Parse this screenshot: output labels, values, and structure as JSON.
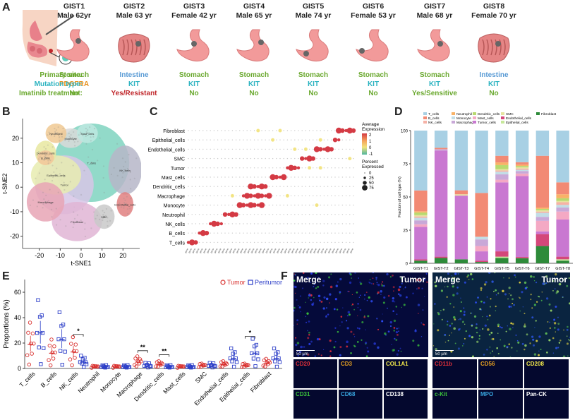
{
  "panel_labels": {
    "a": "A",
    "b": "B",
    "c": "C",
    "d": "D",
    "e": "E",
    "f": "F"
  },
  "row_labels": {
    "site": "Primary site:",
    "mutation": "Mutation type:",
    "imatinib": "Imatinib treatment:"
  },
  "gists": [
    {
      "id": "GIST1",
      "demo": "Male 62yr",
      "organ": "stomach",
      "site": "Stomach",
      "mutation": "PDGFRA",
      "imatinib": "No",
      "site_color": "green",
      "mut_color": "orange",
      "ima_color": "green"
    },
    {
      "id": "GIST2",
      "demo": "Male 63 yr",
      "organ": "intestine",
      "site": "Intestine",
      "mutation": "KIT",
      "imatinib": "Yes/Resistant",
      "site_color": "blue",
      "mut_color": "teal",
      "ima_color": "red"
    },
    {
      "id": "GIST3",
      "demo": "Female 42 yr",
      "organ": "stomach",
      "site": "Stomach",
      "mutation": "KIT",
      "imatinib": "No",
      "site_color": "green",
      "mut_color": "teal",
      "ima_color": "green"
    },
    {
      "id": "GIST4",
      "demo": "Male 65 yr",
      "organ": "stomach",
      "site": "Stomach",
      "mutation": "KIT",
      "imatinib": "No",
      "site_color": "green",
      "mut_color": "teal",
      "ima_color": "green"
    },
    {
      "id": "GIST5",
      "demo": "Male 74 yr",
      "organ": "stomach",
      "site": "Stomach",
      "mutation": "KIT",
      "imatinib": "No",
      "site_color": "green",
      "mut_color": "teal",
      "ima_color": "green"
    },
    {
      "id": "GIST6",
      "demo": "Female 53 yr",
      "organ": "stomach",
      "site": "Stomach",
      "mutation": "KIT",
      "imatinib": "No",
      "site_color": "green",
      "mut_color": "teal",
      "ima_color": "green"
    },
    {
      "id": "GIST7",
      "demo": "Male 68 yr",
      "organ": "stomach",
      "site": "Stomach",
      "mutation": "KIT",
      "imatinib": "Yes/Sensitive",
      "site_color": "green",
      "mut_color": "teal",
      "ima_color": "green"
    },
    {
      "id": "GIST8",
      "demo": "Female 70 yr",
      "organ": "intestine",
      "site": "Intestine",
      "mutation": "KIT",
      "imatinib": "No",
      "site_color": "blue",
      "mut_color": "teal",
      "ima_color": "green"
    }
  ],
  "chart_data": [
    {
      "panel": "B",
      "type": "scatter",
      "xlabel": "t-SNE1",
      "ylabel": "t-SNE2",
      "xticks": [
        -20,
        -10,
        0,
        10,
        20
      ],
      "yticks": [
        20,
        10,
        0,
        -10,
        -20
      ],
      "cluster_labels": [
        "Neutrophil",
        "Monocyte",
        "Dendritic_cells",
        "B_cells",
        "Mast_cells",
        "T_cells",
        "NK_cells",
        "Epithelial_cells",
        "Tumor",
        "Endothelial_cells",
        "Macrophage",
        "SMC",
        "Fibroblast"
      ]
    },
    {
      "panel": "C",
      "type": "dotplot",
      "rows": [
        "Fibroblast",
        "Epithelial_cells",
        "Endothelial_cells",
        "SMC",
        "Tumor",
        "Mast_cells",
        "Dendritic_cells",
        "Macrophage",
        "Monocyte",
        "Neutrophil",
        "NK_cells",
        "B_cells",
        "T_cells"
      ],
      "legend_title_color": "Average Expression",
      "color_ticks": [
        "2",
        "1",
        "0",
        "-1"
      ],
      "legend_title_size": "Percent Expressed",
      "size_ticks": [
        "0",
        "25",
        "50",
        "75"
      ]
    },
    {
      "panel": "D",
      "type": "bar",
      "stacked": true,
      "ylabel": "Fraction of cell type (%)",
      "categories": [
        "GIST-T1",
        "GIST-T2",
        "GIST-T3",
        "GIST-T4",
        "GIST-T5",
        "GIST-T6",
        "GIST-T7",
        "GIST-T8"
      ],
      "yticks": [
        0,
        25,
        50,
        75,
        100
      ],
      "series": [
        {
          "name": "Fibroblast",
          "color": "#2e8b3a",
          "values": [
            2,
            4,
            3,
            1,
            4,
            4,
            13,
            2
          ]
        },
        {
          "name": "Epithelial_cells",
          "color": "#c7e89b",
          "values": [
            0,
            0,
            0,
            0,
            1,
            0,
            0,
            1
          ]
        },
        {
          "name": "Endothelial_cells",
          "color": "#d4477a",
          "values": [
            1,
            1,
            0,
            1,
            4,
            1,
            9,
            2
          ]
        },
        {
          "name": "Tumor_cells",
          "color": "#c978d1",
          "values": [
            25,
            80,
            48,
            7,
            52,
            64,
            2,
            28
          ]
        },
        {
          "name": "Mast_cells",
          "color": "#f4a9c4",
          "values": [
            2,
            0,
            0,
            4,
            2,
            2,
            8,
            6
          ]
        },
        {
          "name": "Macrophage",
          "color": "#c9a8d8",
          "values": [
            3,
            1,
            0,
            5,
            4,
            2,
            3,
            3
          ]
        },
        {
          "name": "Monocyte",
          "color": "#c2dde6",
          "values": [
            2,
            0,
            0,
            2,
            2,
            1,
            3,
            2
          ]
        },
        {
          "name": "NK_cells",
          "color": "#f6b2a6",
          "values": [
            1,
            0,
            0,
            0,
            1,
            1,
            1,
            2
          ]
        },
        {
          "name": "SMC",
          "color": "#e6e3a0",
          "values": [
            1,
            0,
            1,
            0,
            1,
            1,
            1,
            1
          ]
        },
        {
          "name": "Dendritic_cells",
          "color": "#b8d96f",
          "values": [
            2,
            0,
            0,
            0,
            3,
            1,
            1,
            2
          ]
        },
        {
          "name": "Neutrophil",
          "color": "#f8b267",
          "values": [
            1,
            0,
            0,
            0,
            2,
            1,
            1,
            3
          ]
        },
        {
          "name": "B_cells",
          "color": "#f28a74",
          "values": [
            16,
            1,
            3,
            33,
            5,
            2,
            39,
            9
          ]
        },
        {
          "name": "T_cells",
          "color": "#a8d0e4",
          "values": [
            46,
            13,
            45,
            47,
            19,
            25,
            19,
            39
          ]
        }
      ]
    },
    {
      "panel": "E",
      "type": "scatter",
      "ylabel": "Proportions (%)",
      "categories": [
        "T_cells",
        "B_cells",
        "NK_cells",
        "Neutrophil",
        "Monocyte",
        "Macrophage",
        "Dendritic_cells",
        "Mast_cells",
        "SMC",
        "Endothelial_cells",
        "Epithelial_cells",
        "Fibroblast"
      ],
      "yticks": [
        0,
        20,
        40,
        60
      ],
      "legend": [
        "Tumor",
        "Peritumor"
      ],
      "series": [
        {
          "name": "Tumor",
          "color": "#d9302e",
          "means": [
            19,
            12,
            13,
            1,
            1,
            5,
            3,
            1,
            2,
            3,
            2,
            4
          ]
        },
        {
          "name": "Peritumor",
          "color": "#2c3ec8",
          "means": [
            28,
            23,
            5,
            1,
            1,
            2,
            1,
            1,
            2,
            8,
            12,
            8
          ]
        }
      ],
      "significance": [
        {
          "category": "NK_cells",
          "label": "*"
        },
        {
          "category": "Macrophage",
          "label": "**"
        },
        {
          "category": "Dendritic_cells",
          "label": "**"
        },
        {
          "category": "Epithelial_cells",
          "label": "*"
        }
      ]
    }
  ],
  "f_panels": {
    "left": {
      "merge": "Merge",
      "tumor": "Tumor",
      "scale": "50 µm",
      "markers": [
        {
          "name": "CD20",
          "color": "#e0303a"
        },
        {
          "name": "CD3",
          "color": "#e6a020"
        },
        {
          "name": "COL1A1",
          "color": "#f2e84a"
        },
        {
          "name": "CD31",
          "color": "#3cc43c"
        },
        {
          "name": "CD68",
          "color": "#38a6e0"
        },
        {
          "name": "CD138",
          "color": "#ffffff"
        }
      ]
    },
    "right": {
      "merge": "Merge",
      "tumor": "Tumor",
      "scale": "50 µm",
      "markers": [
        {
          "name": "CD11b",
          "color": "#e0303a"
        },
        {
          "name": "CD56",
          "color": "#e6a020"
        },
        {
          "name": "CD208",
          "color": "#f2e84a"
        },
        {
          "name": "c-Kit",
          "color": "#3cc43c"
        },
        {
          "name": "MPO",
          "color": "#38a6e0"
        },
        {
          "name": "Pan-CK",
          "color": "#ffffff"
        }
      ]
    }
  }
}
